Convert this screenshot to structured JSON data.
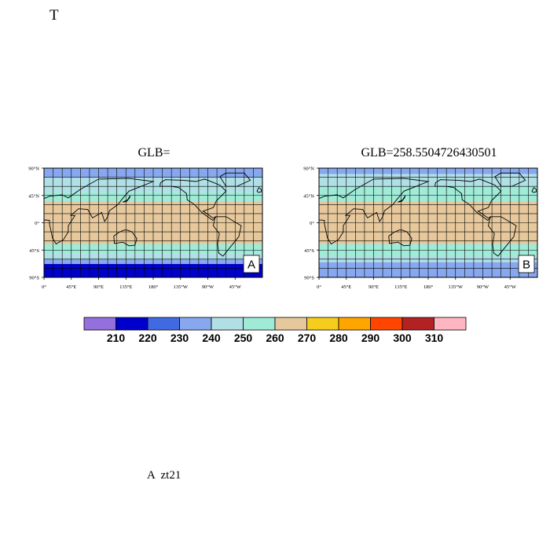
{
  "page": {
    "title": "T",
    "footer": "A  zt21"
  },
  "chart_data": [
    {
      "type": "heatmap",
      "title": "GLB=",
      "panel_label": "A",
      "xticks": [
        "0°",
        "45°E",
        "90°E",
        "135°E",
        "180°",
        "135°W",
        "90°W",
        "45°W"
      ],
      "yticks": [
        "90°N",
        "45°N",
        "0°",
        "45°S",
        "90°S"
      ],
      "lat_bands": [
        {
          "lat_from": 90,
          "lat_to": 75,
          "value": 235
        },
        {
          "lat_from": 75,
          "lat_to": 50,
          "value": 245
        },
        {
          "lat_from": 50,
          "lat_to": 35,
          "value": 255
        },
        {
          "lat_from": 35,
          "lat_to": 20,
          "value": 265
        },
        {
          "lat_from": 20,
          "lat_to": -20,
          "value": 265
        },
        {
          "lat_from": -20,
          "lat_to": -35,
          "value": 265
        },
        {
          "lat_from": -35,
          "lat_to": -50,
          "value": 255
        },
        {
          "lat_from": -50,
          "lat_to": -60,
          "value": 245
        },
        {
          "lat_from": -60,
          "lat_to": -68,
          "value": 235
        },
        {
          "lat_from": -68,
          "lat_to": -90,
          "value": 215
        }
      ]
    },
    {
      "type": "heatmap",
      "title": "GLB=258.5504726430501",
      "panel_label": "B",
      "xticks": [
        "0°",
        "45°E",
        "90°E",
        "135°E",
        "180°",
        "135°W",
        "90°W",
        "45°W"
      ],
      "yticks": [
        "90°N",
        "45°N",
        "0°",
        "45°S",
        "90°S"
      ],
      "lat_bands": [
        {
          "lat_from": 90,
          "lat_to": 80,
          "value": 235
        },
        {
          "lat_from": 80,
          "lat_to": 60,
          "value": 245
        },
        {
          "lat_from": 60,
          "lat_to": 35,
          "value": 255
        },
        {
          "lat_from": 35,
          "lat_to": -35,
          "value": 265
        },
        {
          "lat_from": -35,
          "lat_to": -55,
          "value": 255
        },
        {
          "lat_from": -55,
          "lat_to": -65,
          "value": 245
        },
        {
          "lat_from": -65,
          "lat_to": -90,
          "value": 235
        }
      ]
    }
  ],
  "colorbar": {
    "levels": [
      "210",
      "220",
      "230",
      "240",
      "250",
      "260",
      "270",
      "280",
      "290",
      "300",
      "310"
    ],
    "colors": [
      "#9370DB",
      "#0000CD",
      "#4169E1",
      "#87A8EE",
      "#B0E0E6",
      "#9FEBD8",
      "#E6C89C",
      "#F5CD1D",
      "#FFA500",
      "#FF4500",
      "#B22222",
      "#FFB6C1"
    ]
  }
}
